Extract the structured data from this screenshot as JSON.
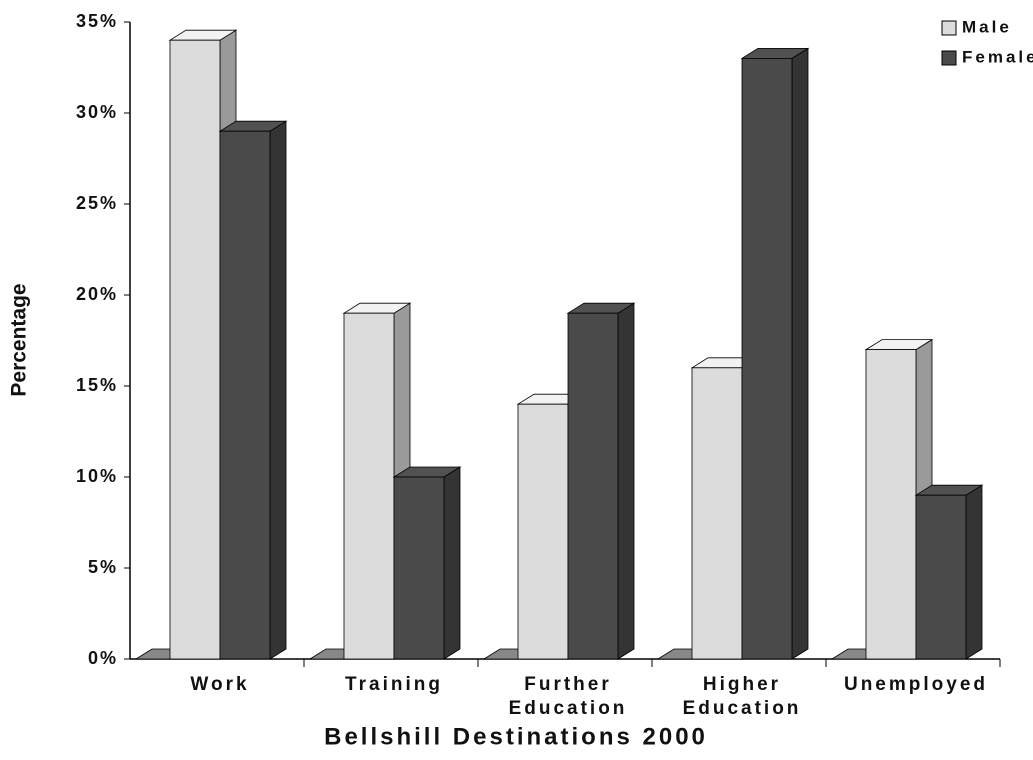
{
  "chart_data": {
    "type": "bar3d",
    "x_label": "Bellshill Destinations 2000",
    "y_label": "Percentage",
    "categories": [
      "Work",
      "Training",
      "Further Education",
      "Higher Education",
      "Unemployed"
    ],
    "series": [
      {
        "name": "Male",
        "color": "#dcdcdc",
        "values": [
          34,
          19,
          14,
          16,
          17
        ]
      },
      {
        "name": "Female",
        "color": "#4a4a4a",
        "values": [
          29,
          10,
          19,
          33,
          9
        ]
      }
    ],
    "ylim": [
      0,
      35
    ],
    "yticks": [
      {
        "value": 0,
        "label": "0%"
      },
      {
        "value": 5,
        "label": "5%"
      },
      {
        "value": 10,
        "label": "10%"
      },
      {
        "value": 15,
        "label": "15%"
      },
      {
        "value": 20,
        "label": "20%"
      },
      {
        "value": 25,
        "label": "25%"
      },
      {
        "value": 30,
        "label": "30%"
      },
      {
        "value": 35,
        "label": "35%"
      }
    ],
    "legend": "top-right"
  }
}
